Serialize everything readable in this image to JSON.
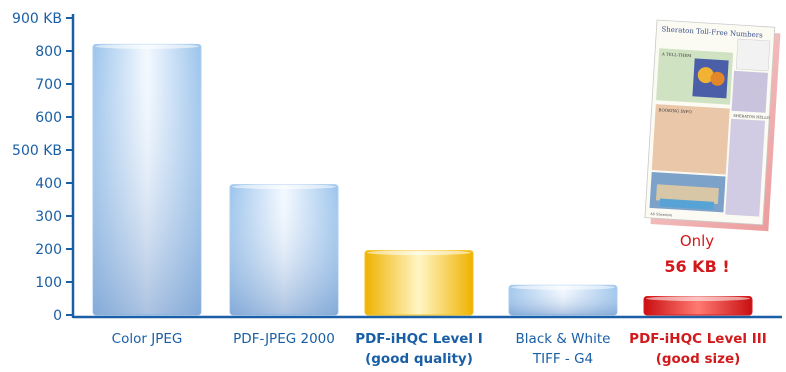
{
  "chart_data": {
    "type": "bar",
    "title": "",
    "xlabel": "",
    "ylabel": "",
    "ylim": [
      0,
      900
    ],
    "yticks": [
      {
        "value": 0,
        "label": "0"
      },
      {
        "value": 100,
        "label": "100"
      },
      {
        "value": 200,
        "label": "200"
      },
      {
        "value": 300,
        "label": "300"
      },
      {
        "value": 400,
        "label": "400"
      },
      {
        "value": 500,
        "label": "500 KB"
      },
      {
        "value": 600,
        "label": "600"
      },
      {
        "value": 700,
        "label": "700"
      },
      {
        "value": 800,
        "label": "800"
      },
      {
        "value": 900,
        "label": "900 KB"
      }
    ],
    "grid": false,
    "legend": "none",
    "bars": [
      {
        "label_lines": [
          "Color JPEG"
        ],
        "value": 820,
        "color": "#a9cdf0",
        "label_color": "#1a5fa6",
        "label_bold": false
      },
      {
        "label_lines": [
          "PDF-JPEG 2000"
        ],
        "value": 395,
        "color": "#a9cdf0",
        "label_color": "#1a5fa6",
        "label_bold": false
      },
      {
        "label_lines": [
          "PDF-iHQC Level I",
          "(good quality)"
        ],
        "value": 195,
        "color": "#f5c21b",
        "label_color": "#1a5fa6",
        "label_bold": true
      },
      {
        "label_lines": [
          "Black & White",
          "TIFF - G4"
        ],
        "value": 90,
        "color": "#a9cdf0",
        "label_color": "#1a5fa6",
        "label_bold": false
      },
      {
        "label_lines": [
          "PDF-iHQC Level III",
          "(good size)"
        ],
        "value": 56,
        "color": "#d81e1e",
        "label_color": "#d2191b",
        "label_bold": true
      }
    ]
  },
  "annotation": {
    "line1": "Only",
    "line2": "56 KB !"
  },
  "thumbnail": {
    "title": "Sheraton Toll-Free Numbers",
    "section1": "A TELL-THEM",
    "section2": "BOOKING INFO",
    "section3": "SHERATON HELLO",
    "footer": "A6 Sheraton"
  },
  "colors": {
    "axis": "#1a5fa6",
    "tick_text": "#1a5fa6",
    "highlight": "#d2191b"
  }
}
